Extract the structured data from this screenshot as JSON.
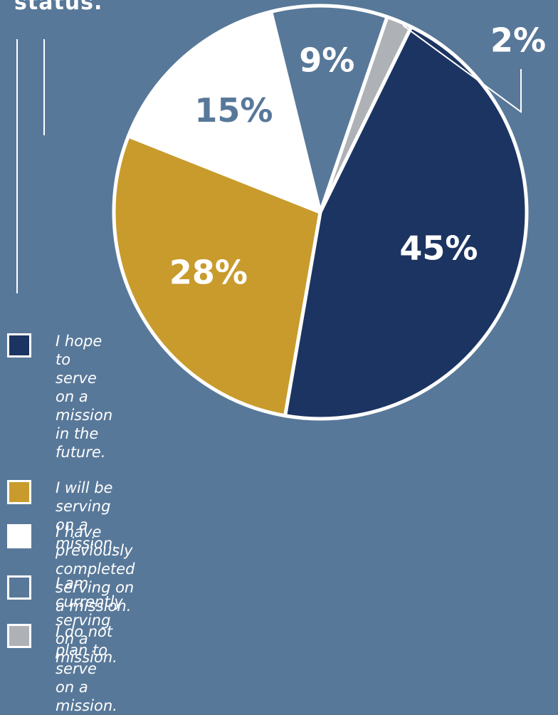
{
  "header": {
    "title_fragment": "status."
  },
  "chart_data": {
    "type": "pie",
    "start_angle_deg": -90,
    "slices": [
      {
        "label": "I do not plan to serve on a mission.",
        "value": 2,
        "display": "2%",
        "color": "#aeb1b5"
      },
      {
        "label": "I hope\nto serve\non a mission\nin the future.",
        "value": 45,
        "display": "45%",
        "color": "#1c3461"
      },
      {
        "label": "I will be serving on a mission.",
        "value": 28,
        "display": "28%",
        "color": "#c89b2c"
      },
      {
        "label": "I have previously completed serving on a mission.",
        "value": 15,
        "display": "15%",
        "color": "#ffffff"
      },
      {
        "label": "I am currently serving on a mission.",
        "value": 9,
        "display": "9%",
        "color": "#587899"
      }
    ],
    "legend": [
      {
        "label": "I hope\nto serve\non a mission\nin the future.",
        "color": "#1c3461"
      },
      {
        "label": "I will be serving on a mission.",
        "color": "#c89b2c"
      },
      {
        "label": "I have previously completed serving on a mission.",
        "color": "#ffffff"
      },
      {
        "label": "I am currently serving on a mission.",
        "color": "#587899"
      },
      {
        "label": "I do not plan to serve on a mission.",
        "color": "#aeb1b5"
      }
    ]
  }
}
